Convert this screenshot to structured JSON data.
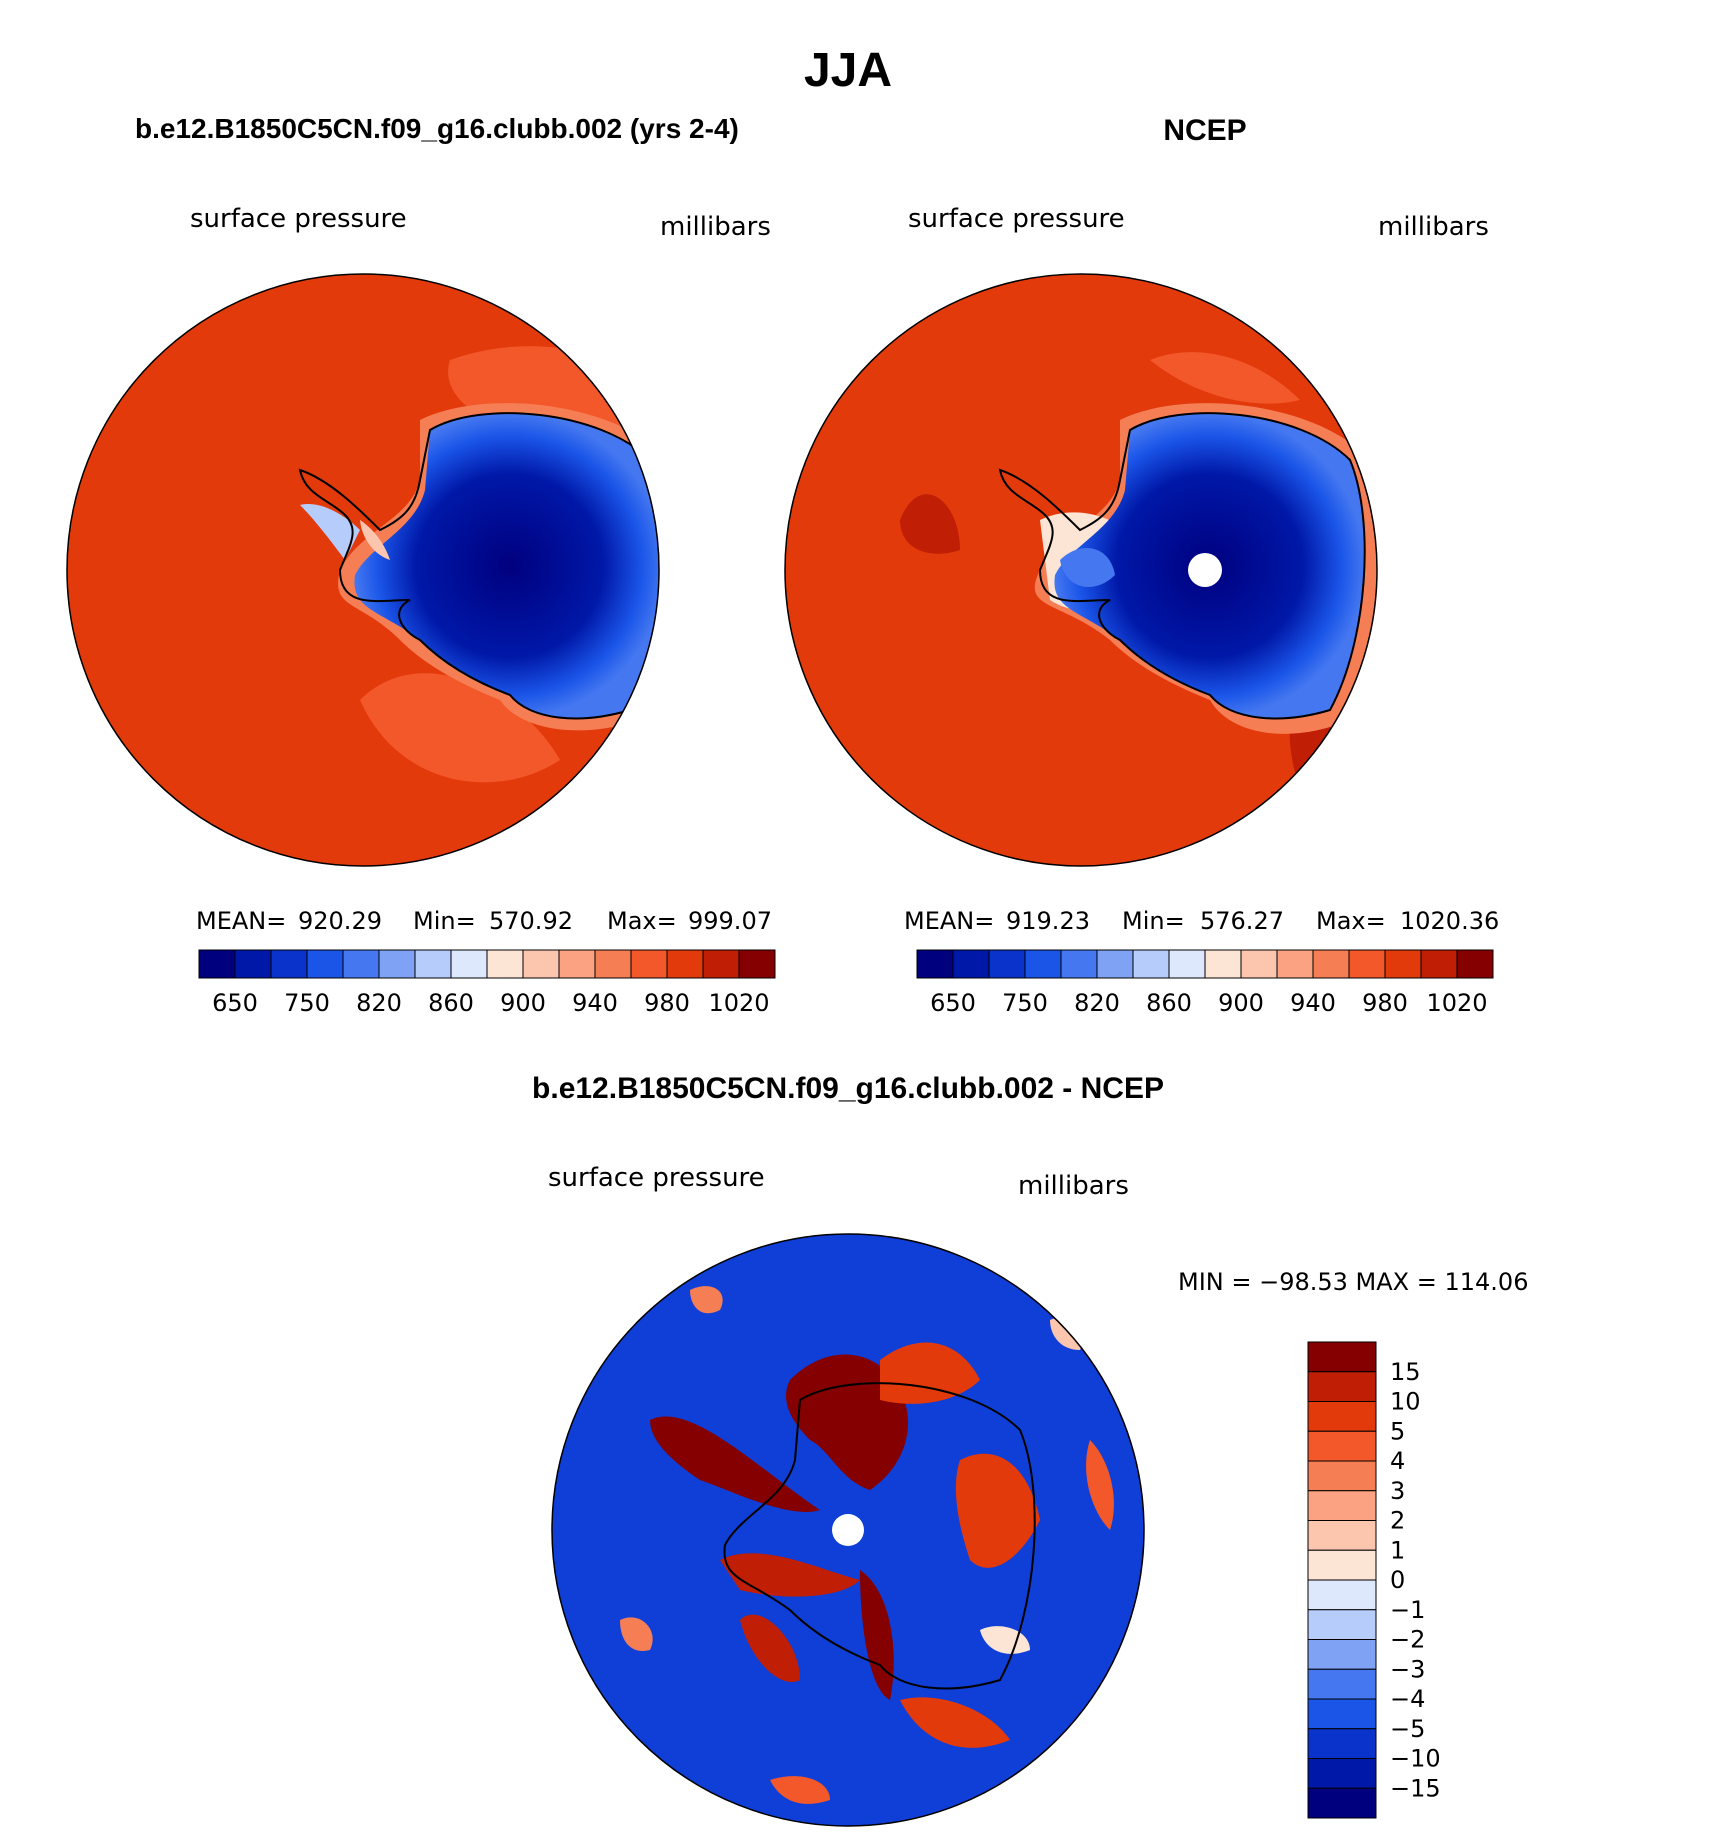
{
  "title": "JJA",
  "panels": [
    {
      "title": "b.e12.B1850C5CN.f09_g16.clubb.002 (yrs 2-4)",
      "variable": "surface pressure",
      "units": "millibars",
      "stats": {
        "mean_label": "MEAN=",
        "mean": "920.29",
        "min_label": "Min=",
        "min": "570.92",
        "max_label": "Max=",
        "max": "999.07"
      }
    },
    {
      "title": "NCEP",
      "variable": "surface pressure",
      "units": "millibars",
      "stats": {
        "mean_label": "MEAN=",
        "mean": "919.23",
        "min_label": "Min=",
        "min": "576.27",
        "max_label": "Max=",
        "max": "1020.36"
      }
    }
  ],
  "colorbar_top": {
    "colors": [
      "#00007f",
      "#0018a8",
      "#0a33cc",
      "#1a55e8",
      "#4477f0",
      "#7fa2f5",
      "#b6ccfa",
      "#dde8fd",
      "#fde5d5",
      "#fcc5ae",
      "#faa282",
      "#f67e55",
      "#f3582a",
      "#e33a0c",
      "#c01e05",
      "#850000"
    ],
    "tick_labels": [
      "650",
      "750",
      "820",
      "860",
      "900",
      "940",
      "980",
      "1020"
    ]
  },
  "diff": {
    "title": "b.e12.B1850C5CN.f09_g16.clubb.002 - NCEP",
    "variable": "surface pressure",
    "units": "millibars",
    "minmax": "MIN = −98.53 MAX = 114.06",
    "colorbar": {
      "colors": [
        "#850000",
        "#c01e05",
        "#e33a0c",
        "#f3582a",
        "#f67e55",
        "#faa282",
        "#fcc5ae",
        "#fde5d5",
        "#dde8fd",
        "#b6ccfa",
        "#7fa2f5",
        "#4477f0",
        "#1a55e8",
        "#0a33cc",
        "#0018a8",
        "#00007f"
      ],
      "tick_labels": [
        "15",
        "10",
        "5",
        "4",
        "3",
        "2",
        "1",
        "0",
        "−1",
        "−2",
        "−3",
        "−4",
        "−5",
        "−10",
        "−15"
      ]
    }
  }
}
